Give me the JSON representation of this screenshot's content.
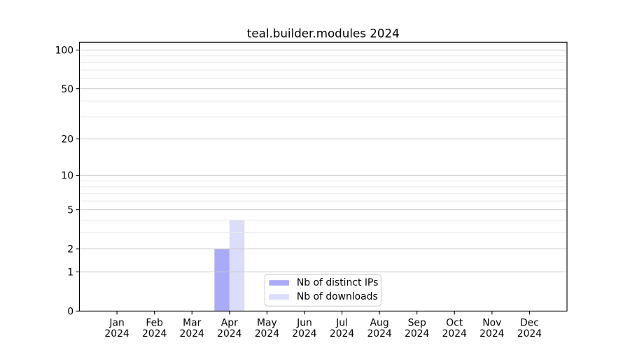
{
  "chart_data": {
    "type": "bar",
    "title": "teal.builder.modules 2024",
    "categories": [
      "Jan",
      "Feb",
      "Mar",
      "Apr",
      "May",
      "Jun",
      "Jul",
      "Aug",
      "Sep",
      "Oct",
      "Nov",
      "Dec"
    ],
    "category_year": "2024",
    "series": [
      {
        "name": "Nb of distinct IPs",
        "color": "#aaaafa",
        "values": [
          0,
          0,
          0,
          2,
          0,
          0,
          0,
          0,
          0,
          0,
          0,
          0
        ]
      },
      {
        "name": "Nb of downloads",
        "color": "#dcdcfb",
        "values": [
          0,
          0,
          0,
          4,
          0,
          0,
          0,
          0,
          0,
          0,
          0,
          0
        ]
      }
    ],
    "xlabel": "",
    "ylabel": "",
    "y_axis": {
      "scale": "log1p",
      "major_ticks": [
        0,
        1,
        2,
        5,
        10,
        20,
        50,
        100
      ],
      "minor_ticks": [
        3,
        4,
        6,
        7,
        8,
        9,
        30,
        40,
        60,
        70,
        80,
        90
      ],
      "ylim": [
        0,
        115
      ]
    },
    "grid": {
      "show": true,
      "major_color": "#c9c9c9",
      "minor_color": "#eaeaea"
    },
    "legend": {
      "position": "lower center",
      "border_color": "#cccccc",
      "background": "#ffffff"
    },
    "colors": {
      "spine": "#000000",
      "text": "#000000",
      "background": "#ffffff"
    }
  }
}
